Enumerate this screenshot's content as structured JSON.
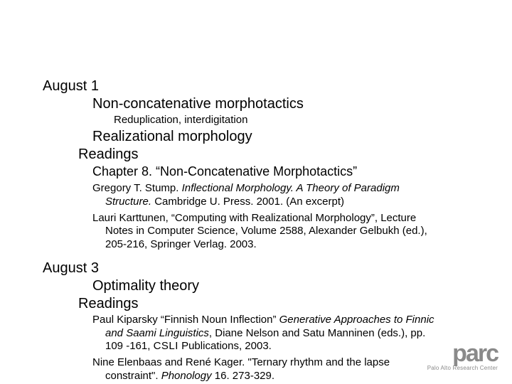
{
  "colors": {
    "background": "#ffffff",
    "text": "#000000",
    "logo": "#8a8a8a"
  },
  "typography": {
    "body_fontsize": 15,
    "heading_fontsize": 20,
    "chapter_fontsize": 18
  },
  "day1": {
    "date": "August 1",
    "topic1": "Non-concatenative morphotactics",
    "sub1": "Reduplication, interdigitation",
    "topic2": "Realizational morphology",
    "readings_label": "Readings",
    "chapter": "Chapter 8. “Non-Concatenative Morphotactics”",
    "ref1_a": "Gregory T. Stump. ",
    "ref1_i": "Inflectional Morphology. A Theory of Paradigm Structure.",
    "ref1_b": " Cambridge U. Press. 2001. (An excerpt)",
    "ref2": "Lauri Karttunen, “Computing with Realizational Morphology”, Lecture Notes in Computer Science, Volume 2588, Alexander Gelbukh (ed.), 205-216, Springer Verlag. 2003."
  },
  "day2": {
    "date": "August 3",
    "topic1": "Optimality theory",
    "readings_label": "Readings",
    "ref1_a": "Paul Kiparsky “Finnish Noun Inflection” ",
    "ref1_i": "Generative Approaches to Finnic and Saami Linguistics",
    "ref1_b": ", Diane Nelson and Satu Manninen (eds.), pp. 109 -161, ",
    "ref1_sc": "CSLI",
    "ref1_c": " Publications, 2003.",
    "ref2_a": "Nine Elenbaas and René Kager. \"Ternary rhythm and the lapse constraint\". ",
    "ref2_i": "Phonology",
    "ref2_b": " 16. 273-329."
  },
  "logo": {
    "main": "parc",
    "sub": "Palo Alto Research Center"
  }
}
